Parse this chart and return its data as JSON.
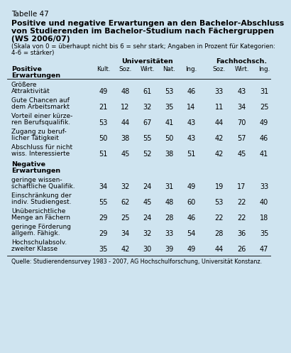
{
  "table_number": "Tabelle 47",
  "title_line1": "Positive und negative Erwartungen an den Bachelor-Abschluss",
  "title_line2": "von Studierenden im Bachelor-Studium nach Fächergruppen",
  "title_line3": "(WS 2006/07)",
  "subtitle_line1": "(Skala von 0 = überhaupt nicht bis 6 = sehr stark; Angaben in Prozent für Kategorien:",
  "subtitle_line2": "4-6 = stärker)",
  "bg_color": "#cfe4f0",
  "header_group1": "Universitäten",
  "header_group2": "Fachhochsch.",
  "col_headers": [
    "Kult.",
    "Soz.",
    "Wirt.",
    "Nat.",
    "Ing.",
    "Soz.",
    "Wirt.",
    "Ing."
  ],
  "section1_header_line1": "Positive",
  "section1_header_line2": "Erwartungen",
  "rows_positive": [
    [
      "Größere",
      "Attraktivität",
      49,
      48,
      61,
      53,
      46,
      33,
      43,
      31
    ],
    [
      "Gute Chancen auf",
      "dem Arbeitsmarkt",
      21,
      12,
      32,
      35,
      14,
      11,
      34,
      25
    ],
    [
      "Vorteil einer kürze-",
      "ren Berufsqualifik.",
      53,
      44,
      67,
      41,
      43,
      44,
      70,
      49
    ],
    [
      "Zugang zu beruf-",
      "licher Tätigkeit",
      50,
      38,
      55,
      50,
      43,
      42,
      57,
      46
    ],
    [
      "Abschluss für nicht",
      "wiss. Interessierte",
      51,
      45,
      52,
      38,
      51,
      42,
      45,
      41
    ]
  ],
  "section2_header_line1": "Negative",
  "section2_header_line2": "Erwartungen",
  "rows_negative": [
    [
      "geringe wissen-",
      "schaftliche Qualifik.",
      34,
      32,
      24,
      31,
      49,
      19,
      17,
      33
    ],
    [
      "Einschränkung der",
      "indiv. Studiengest.",
      55,
      62,
      45,
      48,
      60,
      53,
      22,
      40
    ],
    [
      "Unübersichtliche",
      "Menge an Fächern",
      29,
      25,
      24,
      28,
      46,
      22,
      22,
      18
    ],
    [
      "geringe Förderung",
      "allgem. Fähigk.",
      29,
      34,
      32,
      33,
      54,
      28,
      36,
      35
    ],
    [
      "Hochschulabsolv.",
      "zweiter Klasse",
      35,
      42,
      30,
      39,
      49,
      44,
      26,
      47
    ]
  ],
  "footer": "Quelle: Studierendensurvey 1983 - 2007, AG Hochschulforschung, Universität Konstanz."
}
